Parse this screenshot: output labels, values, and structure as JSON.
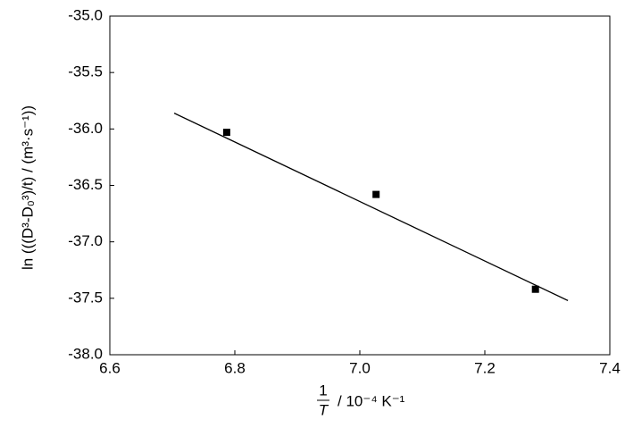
{
  "chart_data": {
    "type": "scatter",
    "x_label_numerator": "1",
    "x_label_denominator": "T",
    "x_label": "/ 10⁻⁴ K⁻¹",
    "y_label": "ln (((D³-D₀³)/t) / (m³·s⁻¹))",
    "x": [
      6.787,
      7.026,
      7.281
    ],
    "values": [
      -36.03,
      -36.58,
      -37.42
    ],
    "color": "#000000",
    "fit_line": {
      "x": [
        6.703,
        7.333
      ],
      "values": [
        -35.86,
        -37.52
      ],
      "color": "#000000"
    },
    "xlim": [
      6.6,
      7.4
    ],
    "xticks": [
      6.6,
      6.8,
      {
        "value": 7.0,
        "label": "7.0"
      },
      7.2,
      7.4
    ],
    "ylim": [
      -38.0,
      -35.0
    ],
    "yticks": [
      {
        "value": -38.0,
        "label": "-38.0"
      },
      -37.5,
      {
        "value": -37.0,
        "label": "-37.0"
      },
      -36.5,
      {
        "value": -36.0,
        "label": "-36.0"
      },
      -35.5,
      {
        "value": -35.0,
        "label": "-35.0"
      }
    ],
    "grid": false
  }
}
